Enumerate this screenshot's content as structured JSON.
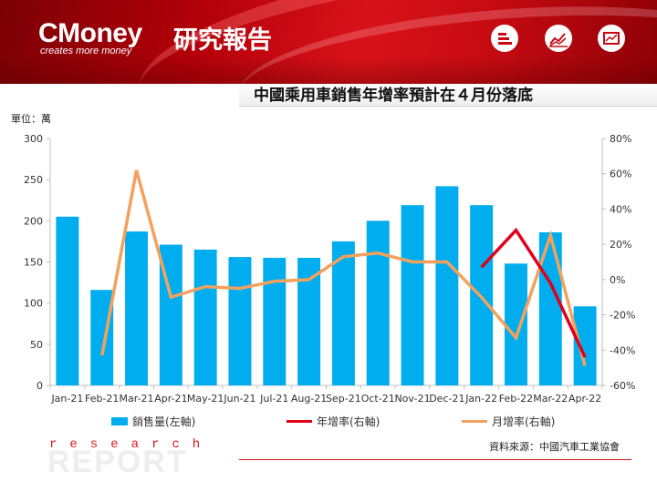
{
  "header": {
    "brand": "CMoney",
    "brand_cn": "研究報告",
    "tagline": "creates more money",
    "icons": [
      "bar-list-icon",
      "trend-line-icon",
      "chart-window-icon"
    ]
  },
  "title": "中國乘用車銷售年增率預計在４月份落底",
  "unit_label": "單位：萬",
  "source": "資料來源：中國汽車工業協會",
  "footer": {
    "research": "research",
    "report": "REPORT"
  },
  "colors": {
    "bar": "#00aeef",
    "yoy": "#e0001b",
    "mom": "#f4a15d",
    "accent": "#c9151b"
  },
  "chart_data": {
    "type": "bar",
    "categories": [
      "Jan-21",
      "Feb-21",
      "Mar-21",
      "Apr-21",
      "May-21",
      "Jun-21",
      "Jul-21",
      "Aug-21",
      "Sep-21",
      "Oct-21",
      "Nov-21",
      "Dec-21",
      "Jan-22",
      "Feb-22",
      "Mar-22",
      "Apr-22"
    ],
    "ylim": [
      0,
      300
    ],
    "yticks": [
      "0",
      "50",
      "100",
      "150",
      "200",
      "250",
      "300"
    ],
    "y2lim": [
      -60,
      80
    ],
    "y2ticks": [
      "-60%",
      "-40%",
      "-20%",
      "0%",
      "20%",
      "40%",
      "60%",
      "80%"
    ],
    "grid": false,
    "legend_position": "bottom",
    "series": [
      {
        "name": "銷售量(左軸)",
        "type": "bar",
        "axis": "left",
        "values": [
          205,
          116,
          187,
          171,
          165,
          156,
          155,
          155,
          175,
          200,
          219,
          242,
          219,
          148,
          186,
          96
        ]
      },
      {
        "name": "年增率(右軸)",
        "type": "line",
        "axis": "right",
        "values": [
          null,
          null,
          null,
          null,
          null,
          null,
          null,
          null,
          null,
          null,
          null,
          null,
          7,
          28,
          -2,
          -44
        ]
      },
      {
        "name": "月增率(右軸)",
        "type": "line",
        "axis": "right",
        "values": [
          null,
          -43,
          62,
          -10,
          -4,
          -5,
          -1,
          0,
          13,
          15,
          10,
          10,
          -10,
          -33,
          25,
          -49
        ]
      }
    ]
  }
}
